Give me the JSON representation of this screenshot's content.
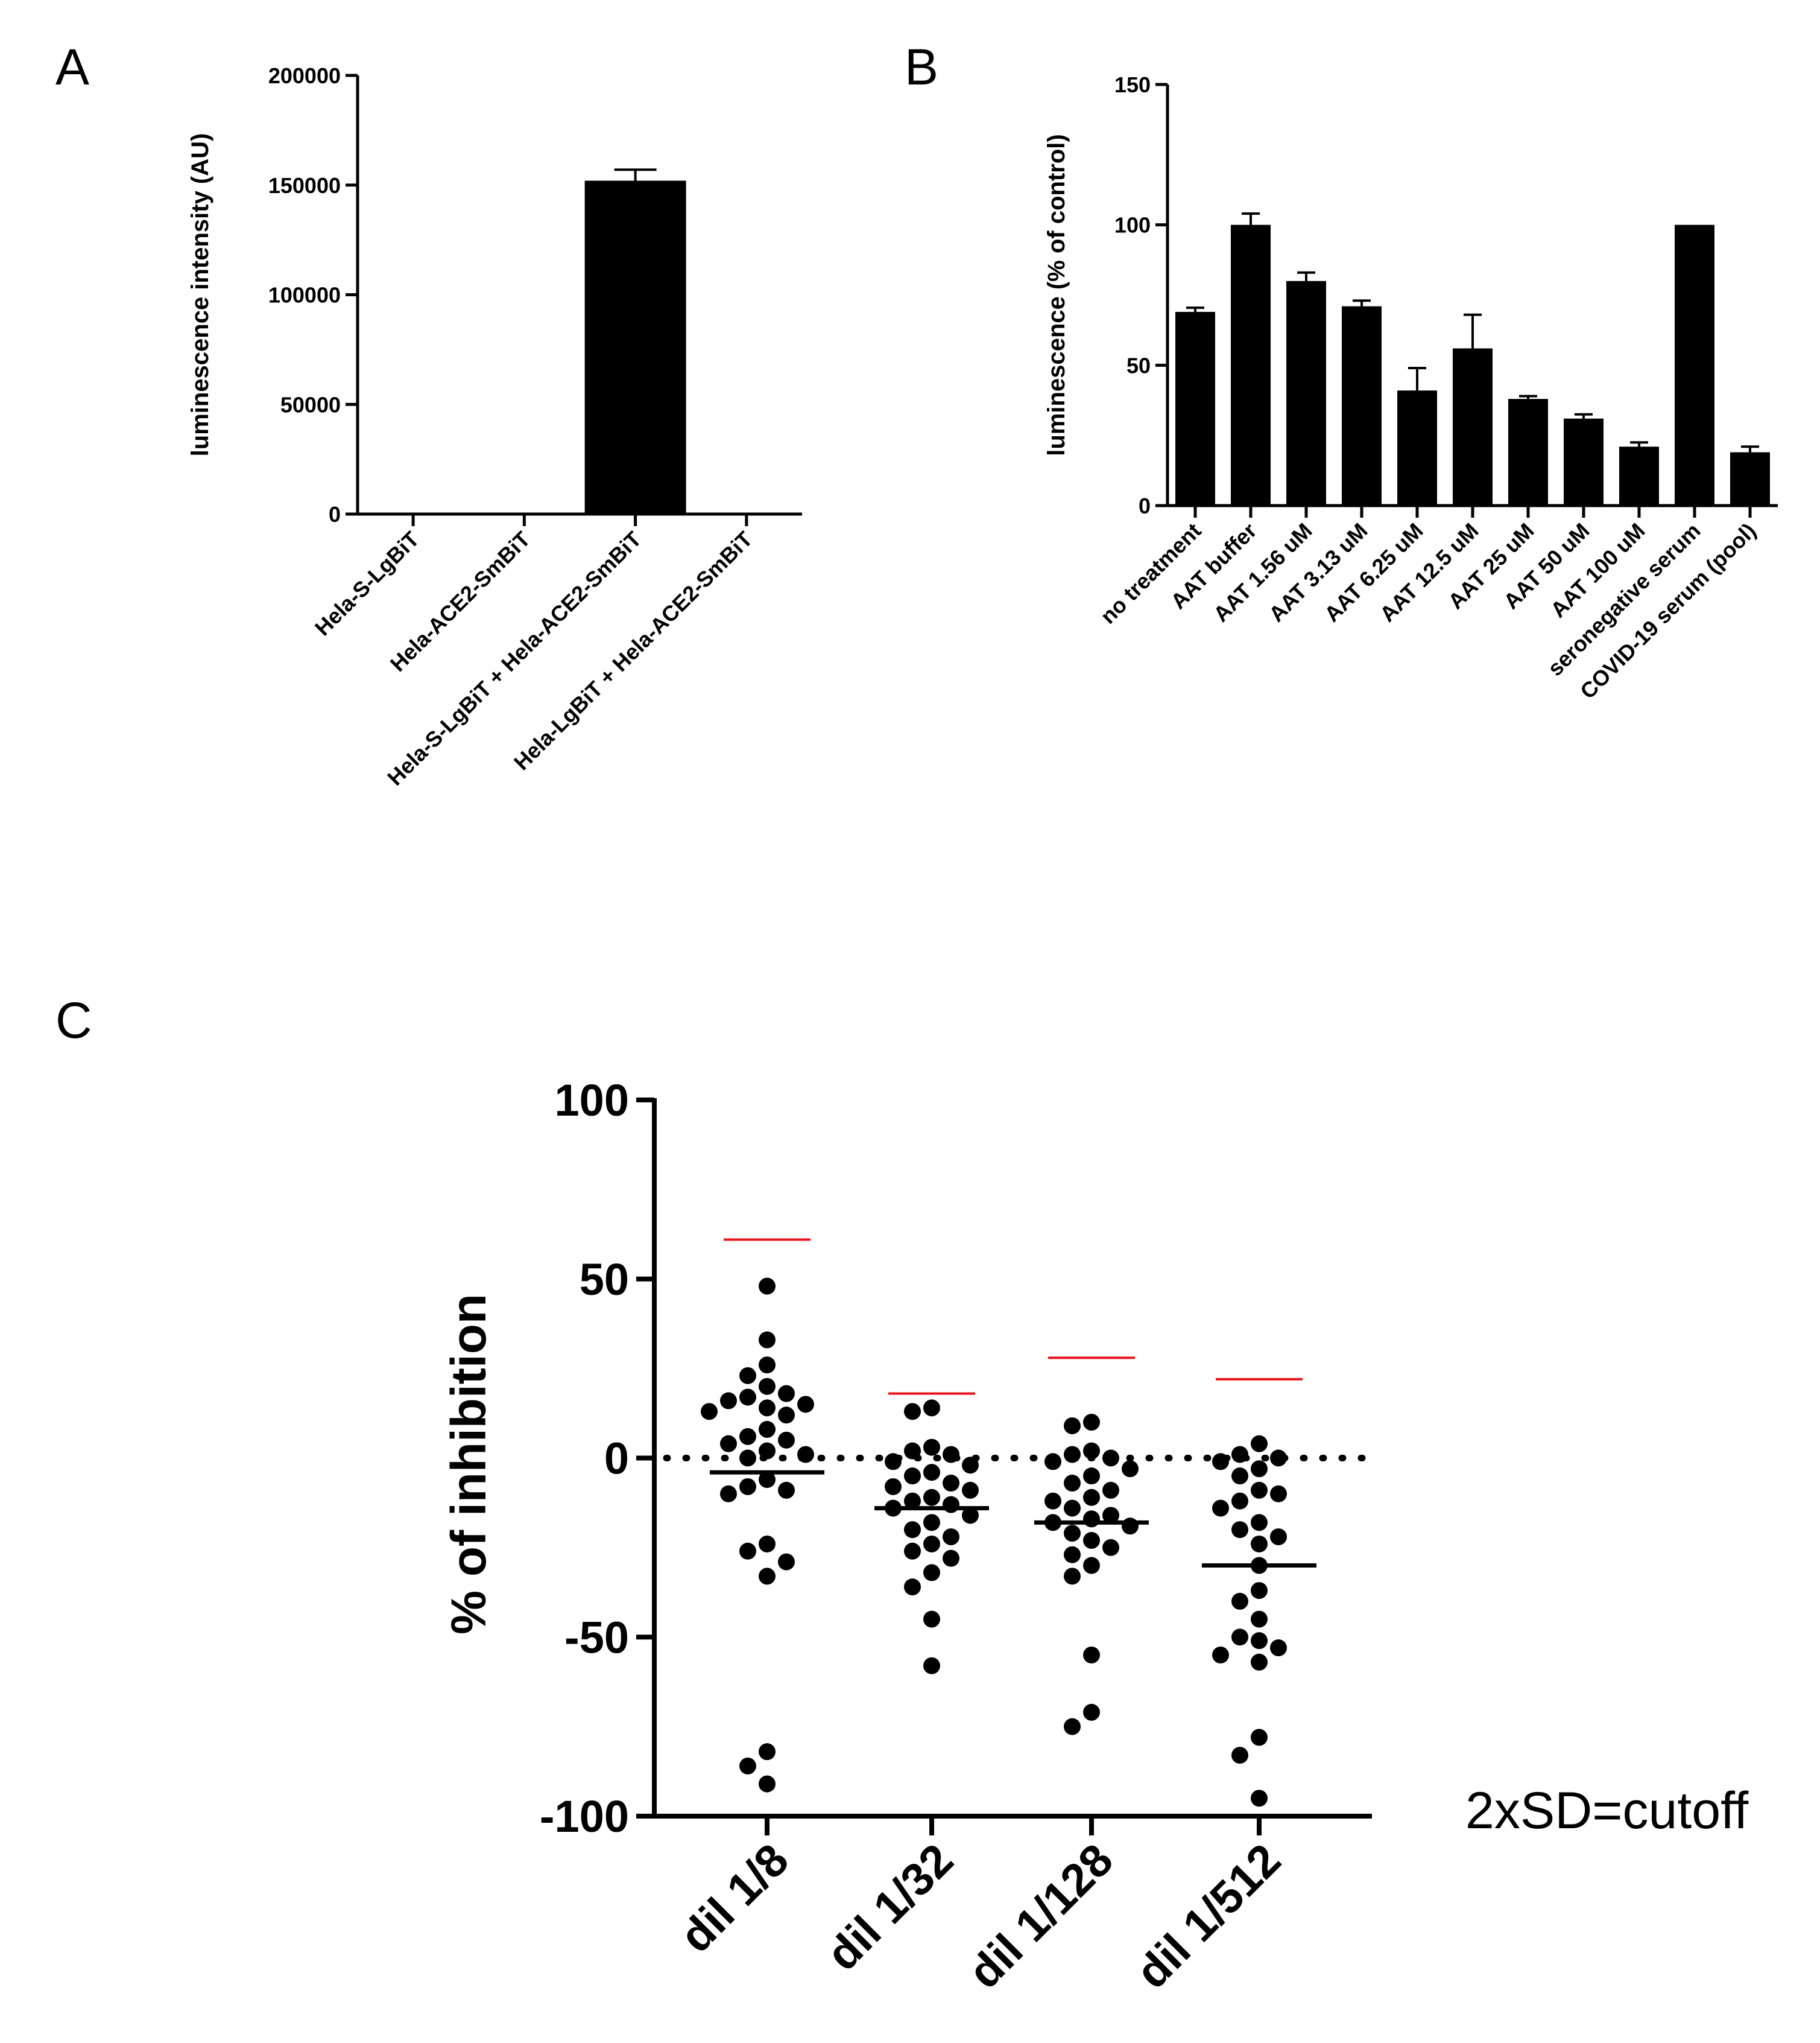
{
  "chart_data": [
    {
      "panel": "A",
      "type": "bar",
      "ylabel": "luminescence intensity (AU)",
      "ylim": [
        0,
        200000
      ],
      "yticks": [
        0,
        50000,
        100000,
        150000,
        200000
      ],
      "categories": [
        "Hela-S-LgBiT",
        "Hela-ACE2-SmBiT",
        "Hela-S-LgBiT + Hela-ACE2-SmBiT",
        "Hela-LgBiT + Hela-ACE2-SmBiT"
      ],
      "values": [
        300,
        300,
        152000,
        300
      ],
      "errors": [
        0,
        0,
        5000,
        0
      ]
    },
    {
      "panel": "B",
      "type": "bar",
      "ylabel": "luminescence (% of control)",
      "ylim": [
        0,
        150
      ],
      "yticks": [
        0,
        50,
        100,
        150
      ],
      "categories": [
        "no treatment",
        "AAT buffer",
        "AAT 1.56 uM",
        "AAT 3.13 uM",
        "AAT 6.25 uM",
        "AAT 12.5 uM",
        "AAT 25 uM",
        "AAT 50 uM",
        "AAT 100 uM",
        "seronegative serum",
        "COVID-19 serum (pool)"
      ],
      "values": [
        69,
        100,
        80,
        71,
        41,
        56,
        38,
        31,
        21,
        100,
        19
      ],
      "errors": [
        1.5,
        4,
        3,
        2,
        8,
        12,
        1,
        1.5,
        1.5,
        0,
        2
      ]
    },
    {
      "panel": "C",
      "type": "scatter",
      "ylabel": "% of inhibition",
      "ylim": [
        -100,
        100
      ],
      "yticks": [
        -100,
        -50,
        0,
        50,
        100
      ],
      "categories": [
        "dil 1/8",
        "dil 1/32",
        "dil 1/128",
        "dil 1/512"
      ],
      "annotation": "2xSD=cutoff",
      "series": [
        {
          "name": "dil 1/8",
          "mean": -4,
          "cutoff": 61,
          "points": [
            48,
            33,
            26,
            23,
            20,
            18,
            17,
            16,
            15,
            14,
            13,
            12,
            8,
            6,
            5,
            4,
            2,
            1,
            0,
            -6,
            -8,
            -9,
            -10,
            -24,
            -26,
            -29,
            -33,
            -82,
            -86,
            -91
          ]
        },
        {
          "name": "dil 1/32",
          "mean": -14,
          "cutoff": 18,
          "points": [
            14,
            13,
            3,
            2,
            1,
            -1,
            -2,
            -4,
            -5,
            -7,
            -8,
            -9,
            -11,
            -12,
            -13,
            -14,
            -16,
            -18,
            -20,
            -22,
            -24,
            -26,
            -28,
            -32,
            -36,
            -45,
            -58
          ]
        },
        {
          "name": "dil 1/128",
          "mean": -18,
          "cutoff": 28,
          "points": [
            10,
            9,
            2,
            1,
            0,
            -1,
            -3,
            -5,
            -7,
            -9,
            -11,
            -12,
            -14,
            -16,
            -17,
            -18,
            -19,
            -21,
            -23,
            -25,
            -27,
            -30,
            -33,
            -55,
            -71,
            -75
          ]
        },
        {
          "name": "dil 1/512",
          "mean": -30,
          "cutoff": 22,
          "points": [
            4,
            1,
            0,
            -1,
            -3,
            -5,
            -9,
            -10,
            -12,
            -14,
            -18,
            -20,
            -22,
            -24,
            -30,
            -37,
            -40,
            -45,
            -50,
            -51,
            -53,
            -55,
            -57,
            -78,
            -83,
            -95
          ]
        }
      ]
    }
  ],
  "panels": {
    "a": "A",
    "b": "B",
    "c": "C"
  }
}
